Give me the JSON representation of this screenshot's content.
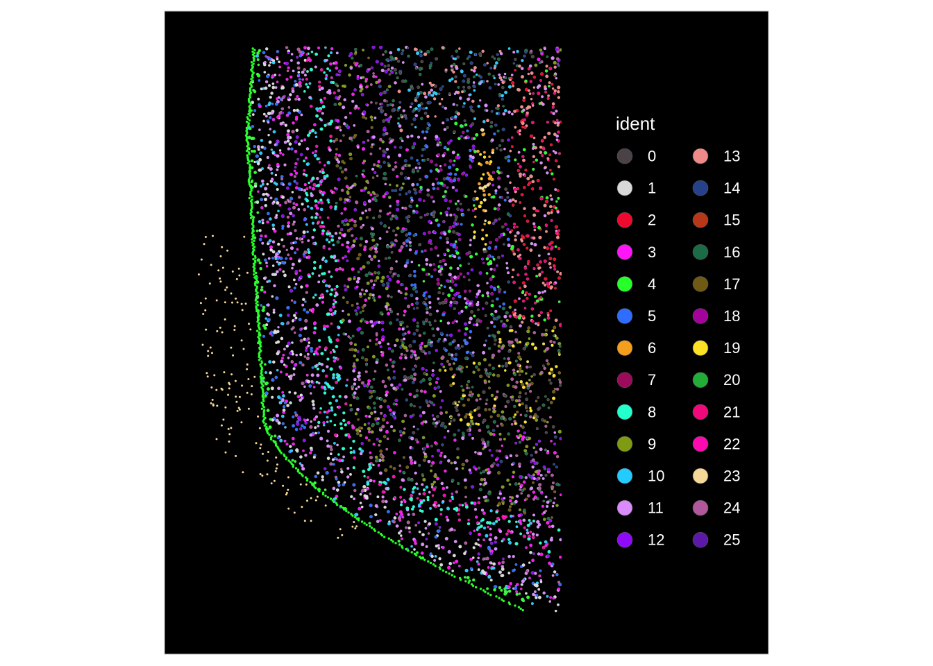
{
  "chart_data": {
    "type": "scatter",
    "title": "",
    "xlabel": "",
    "ylabel": "",
    "axes_visible": false,
    "grid": false,
    "background": "#000000",
    "legend": {
      "title": "ident",
      "position": "right",
      "columns": 2,
      "entries": [
        {
          "label": "0",
          "color": "#4a4247"
        },
        {
          "label": "1",
          "color": "#d9d9d9"
        },
        {
          "label": "2",
          "color": "#f0092e"
        },
        {
          "label": "3",
          "color": "#ff15f8"
        },
        {
          "label": "4",
          "color": "#27ff2a"
        },
        {
          "label": "5",
          "color": "#2e6dff"
        },
        {
          "label": "6",
          "color": "#f59d1d"
        },
        {
          "label": "7",
          "color": "#9b0a5b"
        },
        {
          "label": "8",
          "color": "#23ffcd"
        },
        {
          "label": "9",
          "color": "#7f9b14"
        },
        {
          "label": "10",
          "color": "#24cbff"
        },
        {
          "label": "11",
          "color": "#da8bfb"
        },
        {
          "label": "12",
          "color": "#8f0af7"
        },
        {
          "label": "13",
          "color": "#f08a88"
        },
        {
          "label": "14",
          "color": "#25418a"
        },
        {
          "label": "15",
          "color": "#b73718"
        },
        {
          "label": "16",
          "color": "#1c6b47"
        },
        {
          "label": "17",
          "color": "#6e5a14"
        },
        {
          "label": "18",
          "color": "#a3039b"
        },
        {
          "label": "19",
          "color": "#fde125"
        },
        {
          "label": "20",
          "color": "#22ad39"
        },
        {
          "label": "21",
          "color": "#f1087a"
        },
        {
          "label": "22",
          "color": "#fa0aaf"
        },
        {
          "label": "23",
          "color": "#f6d899"
        },
        {
          "label": "24",
          "color": "#b0589b"
        },
        {
          "label": "25",
          "color": "#5c19a8"
        }
      ]
    }
  }
}
